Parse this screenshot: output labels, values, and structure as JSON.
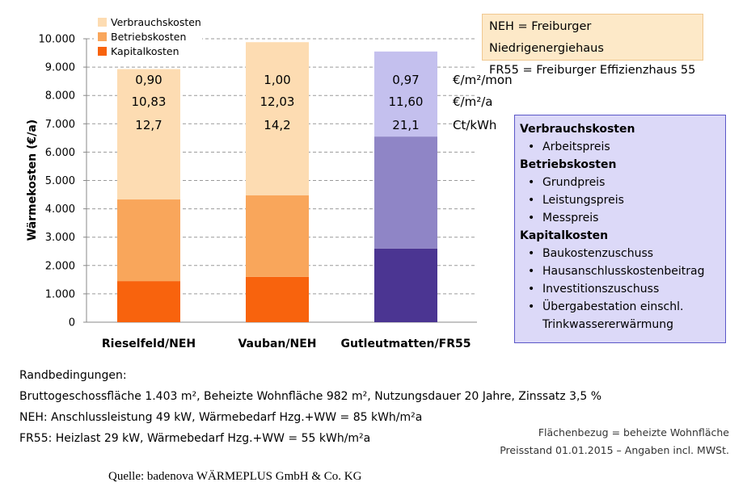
{
  "chart_data": {
    "type": "bar",
    "stacked": true,
    "ylabel": "Wärmekosten (€/a)",
    "ylim": [
      0,
      10000
    ],
    "yticks": [
      "0",
      "1.000",
      "2.000",
      "3.000",
      "4.000",
      "5.000",
      "6.000",
      "7.000",
      "8.000",
      "9.000",
      "10.000"
    ],
    "grid": "horizontal dashed",
    "legend_position": "top-left",
    "categories": [
      "Rieselfeld/NEH",
      "Vauban/NEH",
      "Gutleutmatten/FR55"
    ],
    "series": [
      {
        "name": "Kapitalkosten",
        "values": [
          1450,
          1600,
          2600
        ]
      },
      {
        "name": "Betriebskosten",
        "values": [
          2880,
          2880,
          3950
        ]
      },
      {
        "name": "Verbrauchskosten",
        "values": [
          4600,
          5400,
          3000
        ]
      }
    ],
    "bar_labels": [
      [
        "0,90",
        "10,83",
        "12,7"
      ],
      [
        "1,00",
        "12,03",
        "14,2"
      ],
      [
        "0,97",
        "11,60",
        "21,1"
      ]
    ],
    "unit_labels": [
      "€/m²/mon",
      "€/m²/a",
      "Ct/kWh"
    ],
    "colors": {
      "Kapitalkosten": [
        "#f8630d",
        "#f8630d",
        "#4b3592"
      ],
      "Betriebskosten": [
        "#f9a65b",
        "#f9a65b",
        "#8f85c6"
      ],
      "Verbrauchskosten": [
        "#fddcb2",
        "#fddcb2",
        "#c4c0ee"
      ]
    }
  },
  "abbreviations": [
    "NEH = Freiburger Niedrigenergiehaus",
    "FR55 = Freiburger Effizienzhaus 55"
  ],
  "cost_types": [
    {
      "heading": "Verbrauchskosten",
      "items": [
        "Arbeitspreis"
      ]
    },
    {
      "heading": "Betriebskosten",
      "items": [
        "Grundpreis",
        "Leistungspreis",
        "Messpreis"
      ]
    },
    {
      "heading": "Kapitalkosten",
      "items": [
        "Baukostenzuschuss",
        "Hausanschlusskostenbeitrag",
        "Investitionszuschuss",
        "Übergabestation einschl."
      ],
      "continuation": "Trinkwassererwärmung"
    }
  ],
  "conditions": {
    "title": "Randbedingungen:",
    "line1": "Bruttogeschossfläche 1.403 m², Beheizte Wohnfläche 982 m², Nutzungsdauer 20 Jahre, Zinssatz 3,5 %",
    "line2": "NEH: Anschlussleistung 49 kW, Wärmebedarf Hzg.+WW = 85 kWh/m²a",
    "line3": "FR55: Heizlast 29 kW, Wärmebedarf Hzg.+WW = 55 kWh/m²a"
  },
  "notes": {
    "line1": "Flächenbezug = beheizte Wohnfläche",
    "line2": "Preisstand 01.01.2015 – Angaben incl. MWSt."
  },
  "source": "Quelle: badenova WÄRMEPLUS GmbH & Co. KG"
}
